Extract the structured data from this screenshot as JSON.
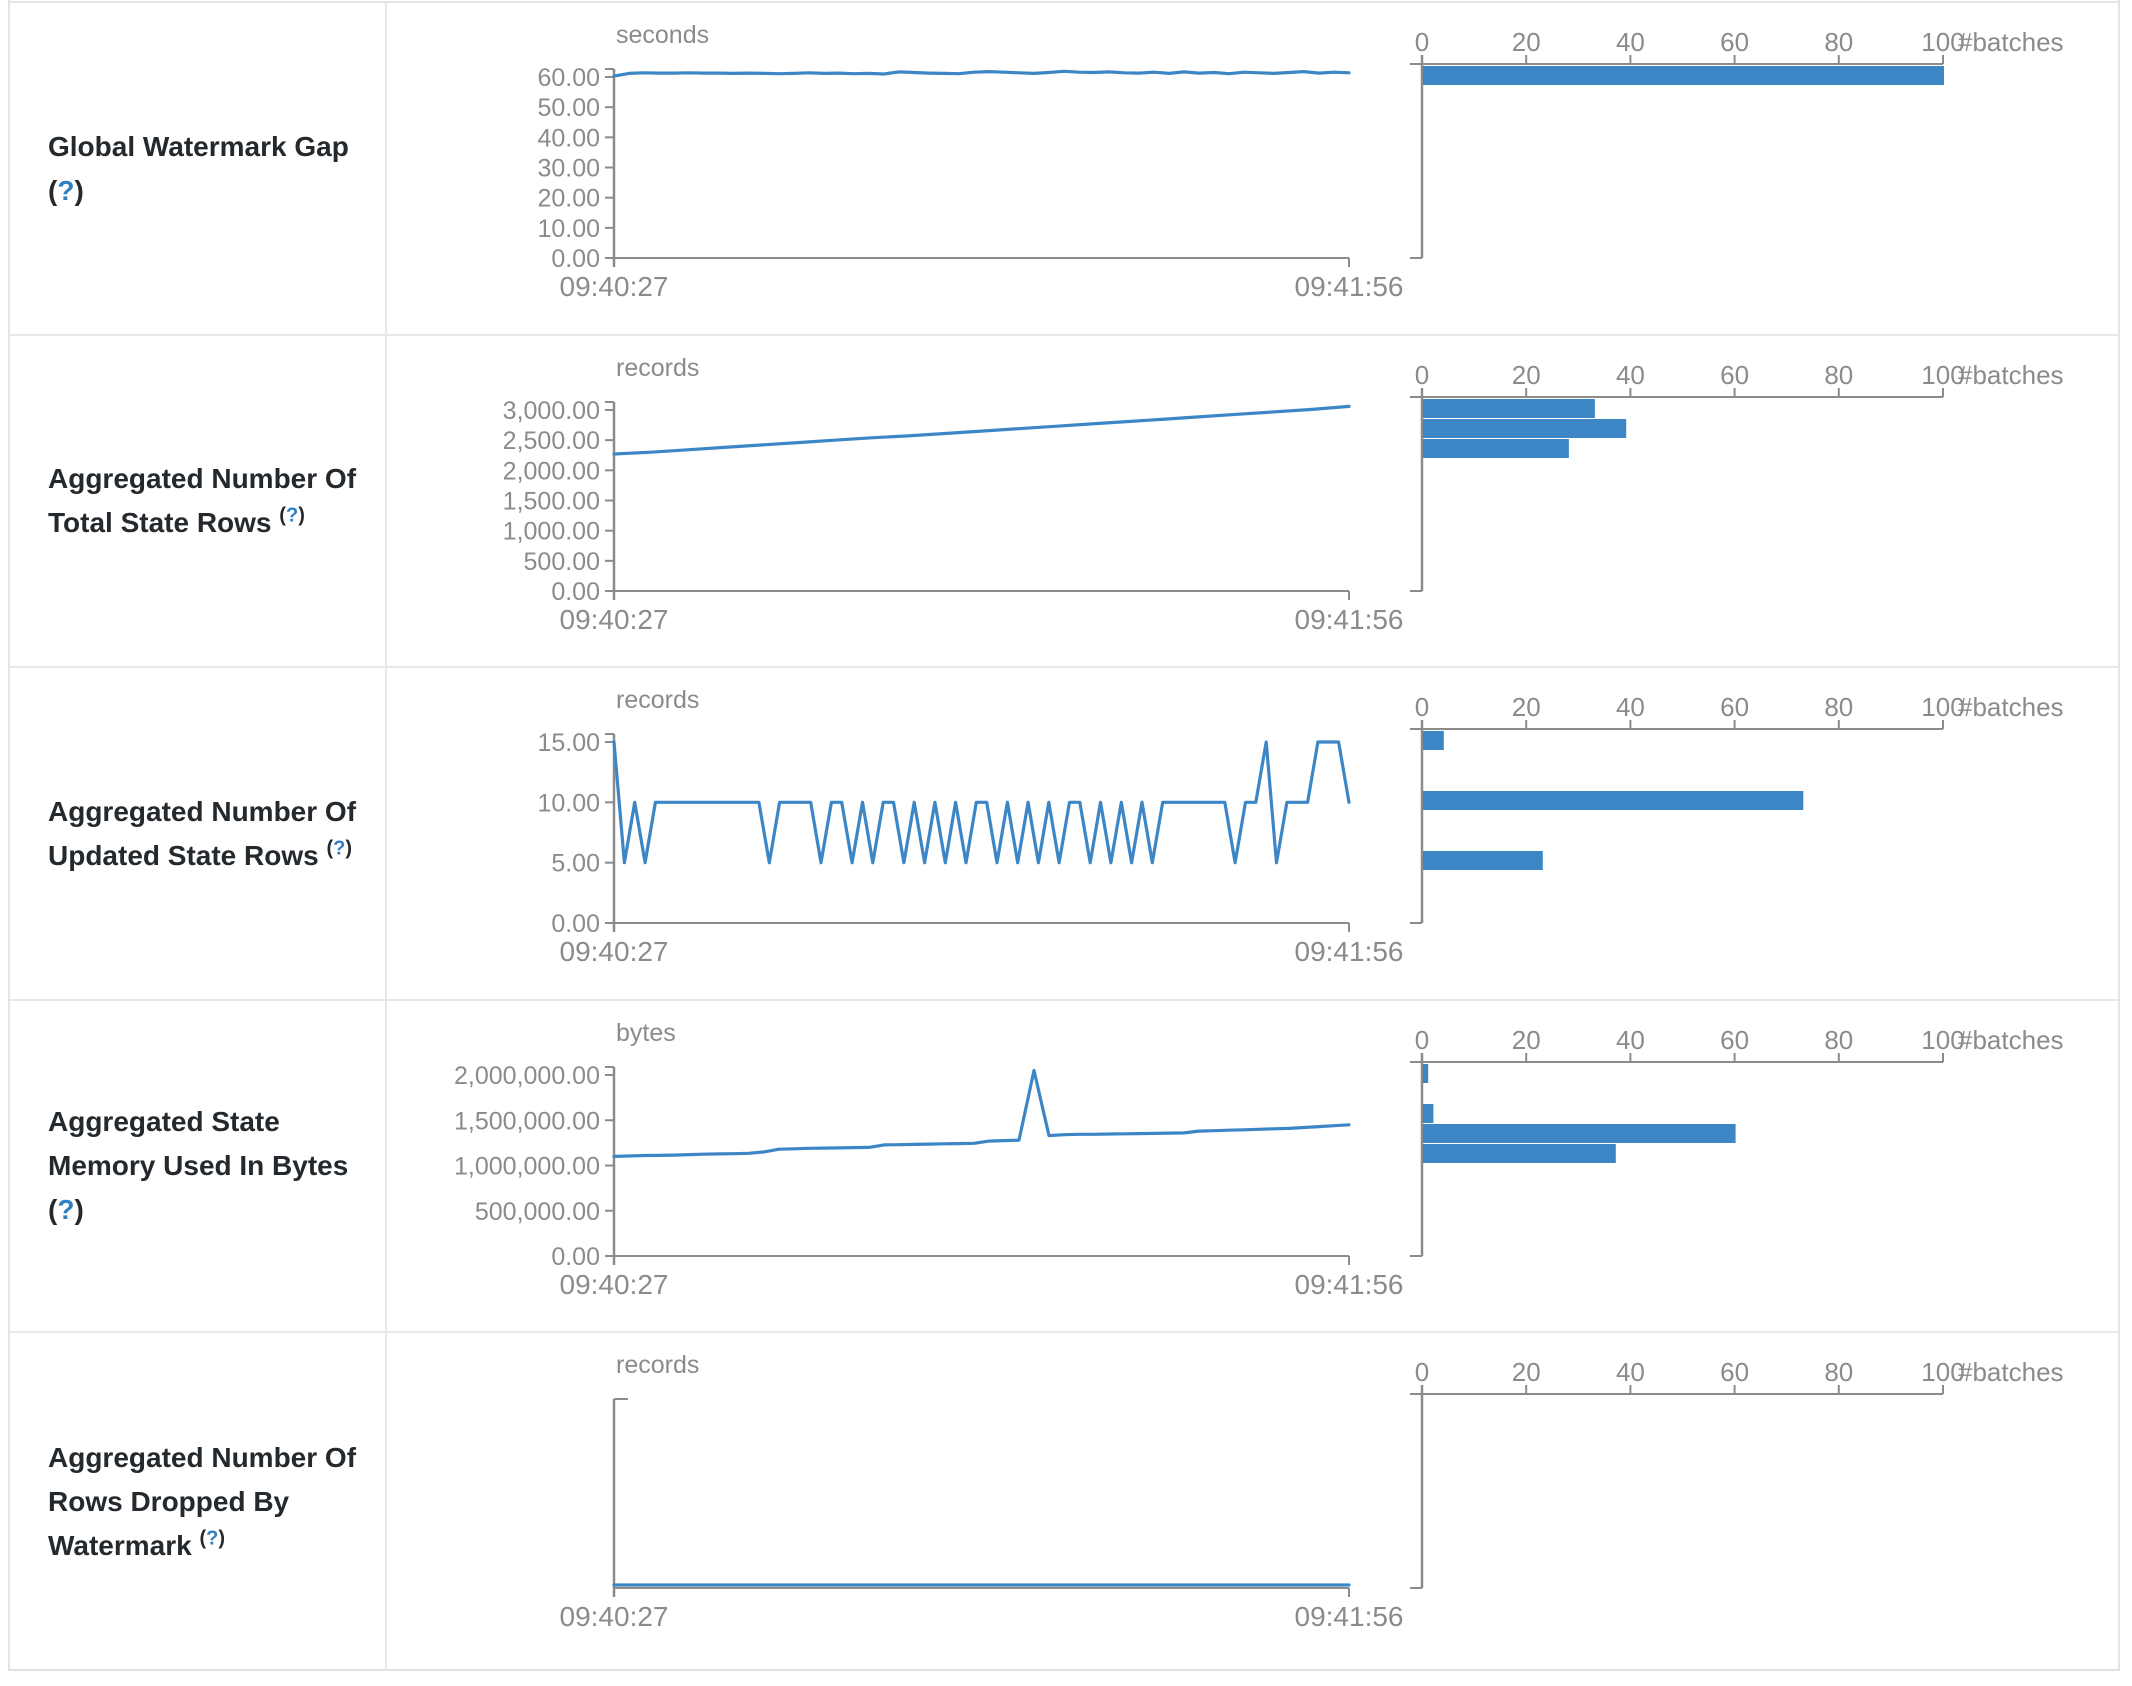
{
  "colors": {
    "series_blue": "#3d86c6",
    "axis_gray": "#8b8b8b",
    "label_text": "#24292e",
    "help_blue": "#2f7fc1",
    "border_gray": "#e1e4e8"
  },
  "help": {
    "open": "(",
    "q": "?",
    "close": ")"
  },
  "time_axis": {
    "start": "09:40:27",
    "end": "09:41:56"
  },
  "hist_axis": {
    "tick_labels": [
      "0",
      "20",
      "40",
      "60",
      "80",
      "100"
    ],
    "unit_label": "#batches",
    "max": 100
  },
  "rows": [
    {
      "label": "Global Watermark Gap",
      "unit": "seconds",
      "y_ticks": [
        "60.00",
        "50.00",
        "40.00",
        "30.00",
        "20.00",
        "10.00",
        "0.00"
      ],
      "y_max": 60,
      "chart_data": {
        "type": "line",
        "x_start": "09:40:27",
        "x_end": "09:41:56",
        "values": [
          60.3,
          61.2,
          61.4,
          61.3,
          61.3,
          61.4,
          61.3,
          61.3,
          61.2,
          61.3,
          61.2,
          61.1,
          61.2,
          61.4,
          61.2,
          61.3,
          61.1,
          61.2,
          61.0,
          61.7,
          61.5,
          61.3,
          61.2,
          61.1,
          61.6,
          61.8,
          61.6,
          61.4,
          61.2,
          61.5,
          61.9,
          61.6,
          61.5,
          61.7,
          61.4,
          61.3,
          61.6,
          61.2,
          61.7,
          61.3,
          61.5,
          61.1,
          61.6,
          61.4,
          61.2,
          61.5,
          61.8,
          61.3,
          61.6,
          61.4
        ]
      },
      "histogram": {
        "type": "bar",
        "unit": "#batches",
        "bars": [
          {
            "bin": 0,
            "batches": 100
          }
        ]
      }
    },
    {
      "label": "Aggregated Number Of Total State Rows",
      "unit": "records",
      "y_ticks": [
        "3,000.00",
        "2,500.00",
        "2,000.00",
        "1,500.00",
        "1,000.00",
        "500.00",
        "0.00"
      ],
      "y_max": 3000,
      "chart_data": {
        "type": "line",
        "x_start": "09:40:27",
        "x_end": "09:41:56",
        "values": [
          2270,
          2300,
          2340,
          2380,
          2420,
          2460,
          2500,
          2540,
          2570,
          2610,
          2650,
          2690,
          2730,
          2770,
          2810,
          2850,
          2890,
          2930,
          2970,
          3010,
          3060
        ]
      },
      "histogram": {
        "type": "bar",
        "unit": "#batches",
        "bars": [
          {
            "bin": 0,
            "batches": 33
          },
          {
            "bin": 1,
            "batches": 39
          },
          {
            "bin": 2,
            "batches": 28
          }
        ]
      }
    },
    {
      "label": "Aggregated Number Of Updated State Rows",
      "unit": "records",
      "y_ticks": [
        "15.00",
        "10.00",
        "5.00",
        "0.00"
      ],
      "y_max": 15,
      "chart_data": {
        "type": "line",
        "x_start": "09:40:27",
        "x_end": "09:41:56",
        "values": [
          15,
          5,
          10,
          5,
          10,
          10,
          10,
          10,
          10,
          10,
          10,
          10,
          10,
          10,
          10,
          5,
          10,
          10,
          10,
          10,
          5,
          10,
          10,
          5,
          10,
          5,
          10,
          10,
          5,
          10,
          5,
          10,
          5,
          10,
          5,
          10,
          10,
          5,
          10,
          5,
          10,
          5,
          10,
          5,
          10,
          10,
          5,
          10,
          5,
          10,
          5,
          10,
          5,
          10,
          10,
          10,
          10,
          10,
          10,
          10,
          5,
          10,
          10,
          15,
          5,
          10,
          10,
          10,
          15,
          15,
          15,
          10
        ]
      },
      "histogram": {
        "type": "bar",
        "unit": "#batches",
        "bars": [
          {
            "bin": 0,
            "batches": 4
          },
          {
            "bin": 3,
            "batches": 73
          },
          {
            "bin": 6,
            "batches": 23
          }
        ]
      }
    },
    {
      "label": "Aggregated State Memory Used In Bytes",
      "unit": "bytes",
      "y_ticks": [
        "2,000,000.00",
        "1,500,000.00",
        "1,000,000.00",
        "500,000.00",
        "0.00"
      ],
      "y_max": 2000000,
      "chart_data": {
        "type": "line",
        "x_start": "09:40:27",
        "x_end": "09:41:56",
        "values": [
          1100000,
          1105000,
          1110000,
          1112000,
          1115000,
          1120000,
          1125000,
          1128000,
          1130000,
          1135000,
          1150000,
          1180000,
          1185000,
          1190000,
          1192000,
          1195000,
          1198000,
          1200000,
          1228000,
          1230000,
          1233000,
          1236000,
          1240000,
          1242000,
          1245000,
          1270000,
          1275000,
          1280000,
          2050000,
          1330000,
          1340000,
          1345000,
          1345000,
          1348000,
          1350000,
          1352000,
          1355000,
          1358000,
          1360000,
          1380000,
          1385000,
          1390000,
          1395000,
          1400000,
          1405000,
          1410000,
          1420000,
          1430000,
          1440000,
          1450000
        ]
      },
      "histogram": {
        "type": "bar",
        "unit": "#batches",
        "bars": [
          {
            "bin": 0,
            "batches": 1
          },
          {
            "bin": 2,
            "batches": 2
          },
          {
            "bin": 3,
            "batches": 60
          },
          {
            "bin": 4,
            "batches": 37
          }
        ]
      }
    },
    {
      "label": "Aggregated Number Of Rows Dropped By Watermark",
      "unit": "records",
      "y_ticks": [],
      "y_max": null,
      "chart_data": {
        "type": "line",
        "x_start": "09:40:27",
        "x_end": "09:41:56",
        "values": [
          0,
          0,
          0,
          0,
          0,
          0,
          0,
          0,
          0,
          0
        ]
      },
      "histogram": {
        "type": "bar",
        "unit": "#batches",
        "bars": []
      }
    }
  ]
}
